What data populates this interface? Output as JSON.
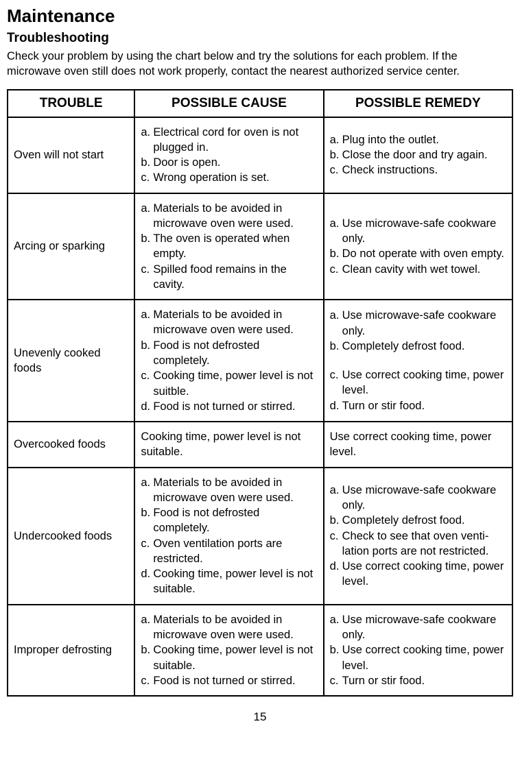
{
  "page": {
    "title": "Maintenance",
    "subtitle": "Troubleshooting",
    "intro": "Check your problem by using the chart below and try the solutions for each problem. If the microwave oven still does not work properly, contact the nearest authorized service center.",
    "pageNumber": "15"
  },
  "table": {
    "headers": {
      "trouble": "TROUBLE",
      "cause": "POSSIBLE CAUSE",
      "remedy": "POSSIBLE REMEDY"
    },
    "rows": [
      {
        "trouble": "Oven will not start",
        "causes": [
          {
            "marker": "a.",
            "text": "Electrical cord for oven is not plugged in."
          },
          {
            "marker": "b.",
            "text": "Door is open."
          },
          {
            "marker": "c.",
            "text": "Wrong operation is set."
          }
        ],
        "remedies": [
          {
            "marker": "a.",
            "text": "Plug into the outlet."
          },
          {
            "marker": "b.",
            "text": "Close the door and try again."
          },
          {
            "marker": "c.",
            "text": "Check instructions."
          }
        ]
      },
      {
        "trouble": "Arcing or sparking",
        "causes": [
          {
            "marker": "a.",
            "text": "Materials to be avoided in microwave oven were used."
          },
          {
            "marker": "b.",
            "text": "The oven is operated when empty."
          },
          {
            "marker": "c.",
            "text": "Spilled food remains in the cavity."
          }
        ],
        "remedies": [
          {
            "marker": "a.",
            "text": "Use microwave-safe cookware only."
          },
          {
            "marker": "b.",
            "text": "Do not operate with oven empty."
          },
          {
            "marker": "c.",
            "text": "Clean cavity with wet towel."
          }
        ]
      },
      {
        "trouble": "Unevenly cooked foods",
        "causes": [
          {
            "marker": "a.",
            "text": "Materials to be avoided in microwave oven were used."
          },
          {
            "marker": "b.",
            "text": "Food is not defrosted completely."
          },
          {
            "marker": "c.",
            "text": "Cooking time, power level is not suitble."
          },
          {
            "marker": "d.",
            "text": "Food is not turned or stirred."
          }
        ],
        "remedies": [
          {
            "marker": "a.",
            "text": "Use microwave-safe cookware only."
          },
          {
            "marker": "b.",
            "text": "Completely defrost food."
          },
          {
            "marker": "",
            "text": ""
          },
          {
            "marker": "c.",
            "text": "Use correct cooking time, power level."
          },
          {
            "marker": "d.",
            "text": "Turn or stir food."
          }
        ]
      },
      {
        "trouble": "Overcooked foods",
        "causeSingle": "Cooking time, power level is not suitable.",
        "remedySingle": "Use correct cooking time, power level."
      },
      {
        "trouble": "Undercooked foods",
        "causes": [
          {
            "marker": "a.",
            "text": "Materials to be avoided in microwave oven were used."
          },
          {
            "marker": "b.",
            "text": "Food is not defrosted completely."
          },
          {
            "marker": "c.",
            "text": "Oven ventilation ports are restricted."
          },
          {
            "marker": "d.",
            "text": "Cooking time, power level is not suitable."
          }
        ],
        "remedies": [
          {
            "marker": "a.",
            "text": "Use microwave-safe cookware only."
          },
          {
            "marker": "b.",
            "text": "Completely defrost food."
          },
          {
            "marker": "c.",
            "text": "Check to see that oven venti- lation ports are not restricted."
          },
          {
            "marker": "d.",
            "text": "Use correct cooking time, power level."
          }
        ]
      },
      {
        "trouble": "Improper defrosting",
        "causes": [
          {
            "marker": "a.",
            "text": "Materials to be avoided in microwave oven were used."
          },
          {
            "marker": "b.",
            "text": "Cooking time, power level is not suitable."
          },
          {
            "marker": "c.",
            "text": "Food is not turned or stirred."
          }
        ],
        "remedies": [
          {
            "marker": "a.",
            "text": "Use microwave-safe cookware only."
          },
          {
            "marker": "b.",
            "text": "Use correct cooking time, power level."
          },
          {
            "marker": "c.",
            "text": "Turn or stir food."
          }
        ]
      }
    ]
  }
}
